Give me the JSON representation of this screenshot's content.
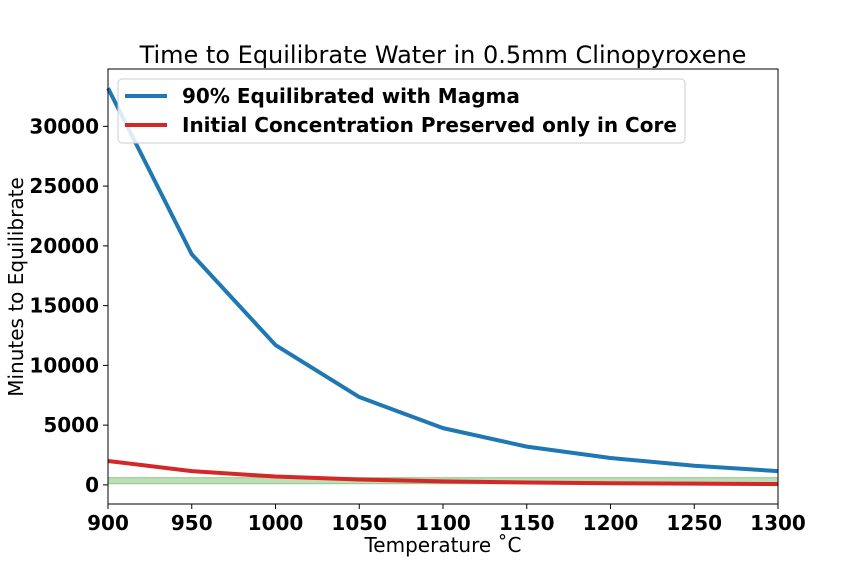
{
  "chart_data": {
    "type": "line",
    "title": "Time to Equilibrate Water in 0.5mm Clinopyroxene",
    "xlabel": "Temperature ˚C",
    "ylabel": "Minutes to Equilibrate",
    "xlim": [
      900,
      1300
    ],
    "ylim": [
      -1600,
      34800
    ],
    "x_ticks": [
      900,
      950,
      1000,
      1050,
      1100,
      1150,
      1200,
      1250,
      1300
    ],
    "y_ticks": [
      0,
      5000,
      10000,
      15000,
      20000,
      25000,
      30000
    ],
    "grid": false,
    "legend_position": "top-left",
    "band": {
      "y_low": 100,
      "y_high": 600,
      "color": "#b5dcb0"
    },
    "series": [
      {
        "name": "90% Equilibrated with Magma",
        "color": "#1f77b4",
        "x": [
          900,
          950,
          1000,
          1050,
          1100,
          1150,
          1200,
          1250,
          1300
        ],
        "values": [
          33200,
          19300,
          11700,
          7350,
          4750,
          3200,
          2250,
          1600,
          1150
        ]
      },
      {
        "name": "Initial Concentration Preserved only in Core",
        "color": "#d62728",
        "x": [
          900,
          950,
          1000,
          1050,
          1100,
          1150,
          1200,
          1250,
          1300
        ],
        "values": [
          2000,
          1150,
          700,
          450,
          290,
          200,
          140,
          100,
          70
        ]
      }
    ]
  }
}
